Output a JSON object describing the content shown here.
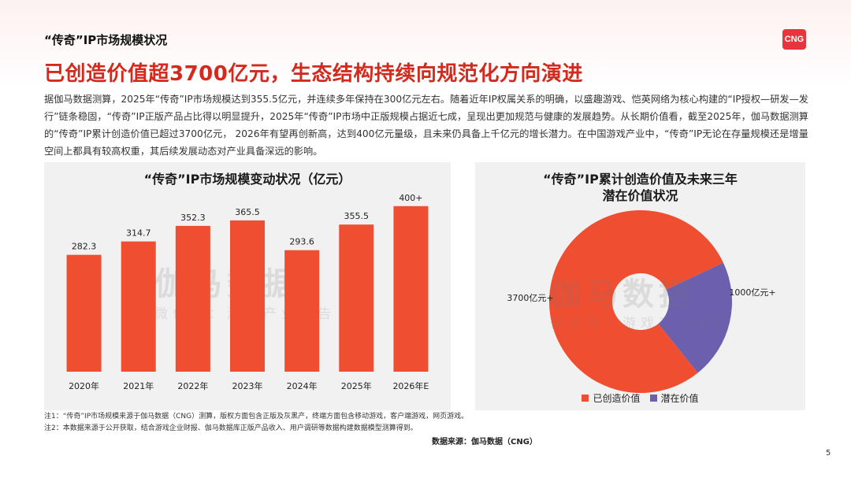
{
  "header": {
    "section_title": "“传奇”IP市场规模状况",
    "headline": "已创造价值超3700亿元，生态结构持续向规范化方向演进",
    "logo_text": "CNG"
  },
  "body_text": "据伽马数据测算，2025年“传奇”IP市场规模达到355.5亿元，并连续多年保持在300亿元左右。随着近年IP权属关系的明确，以盛趣游戏、恺英网络为核心构建的“IP授权—研发—发行”链条稳固，“传奇”IP正版产品占比得以明显提升，2025年“传奇”IP市场中正版规模占据近七成，呈现出更加规范与健康的发展趋势。从长期价值看，截至2025年，伽马数据测算的“传奇”IP累计创造价值已超过3700亿元， 2026年有望再创新高，达到400亿元量级，且未来仍具备上千亿元的增长潜力。在中国游戏产业中，“传奇”IP无论在存量规模还是增量空间上都具有较高权重，其后续发展动态对产业具备深远的影响。",
  "watermark": {
    "main": "伽马数据",
    "sub": "微信号：游戏产业报告"
  },
  "chart_data": [
    {
      "type": "bar",
      "title": "“传奇”IP市场规模变动状况（亿元）",
      "categories": [
        "2020年",
        "2021年",
        "2022年",
        "2023年",
        "2024年",
        "2025年",
        "2026年E"
      ],
      "values": [
        282.3,
        314.7,
        352.3,
        365.5,
        293.6,
        355.5,
        400
      ],
      "labels": [
        "282.3",
        "314.7",
        "352.3",
        "365.5",
        "293.6",
        "355.5",
        "400+"
      ],
      "ylim": [
        0,
        430
      ],
      "color": "#f04e30",
      "grid": false
    },
    {
      "type": "pie",
      "style": "donut",
      "title_lines": [
        "“传奇”IP累计创造价值及未来三年",
        "潜在价值状况"
      ],
      "slices": [
        {
          "name": "已创造价值",
          "value": 3700,
          "label": "3700亿元+",
          "color": "#f04e30"
        },
        {
          "name": "潜在价值",
          "value": 1000,
          "label": "1000亿元+",
          "color": "#6b5fae"
        }
      ],
      "legend_position": "bottom"
    }
  ],
  "notes": [
    "注1：“传奇”IP市场规模来源于伽马数据（CNG）测算，版权方面包含正版及灰黑产，终端方面包含移动游戏，客户端游戏，网页游戏。",
    "注2：本数据来源于公开获取，结合游戏企业财报、伽马数据库正版产品收入、用户调研等数据构建数据模型测算得到。"
  ],
  "source": "数据来源：伽马数据（CNG）",
  "page_number": "5"
}
